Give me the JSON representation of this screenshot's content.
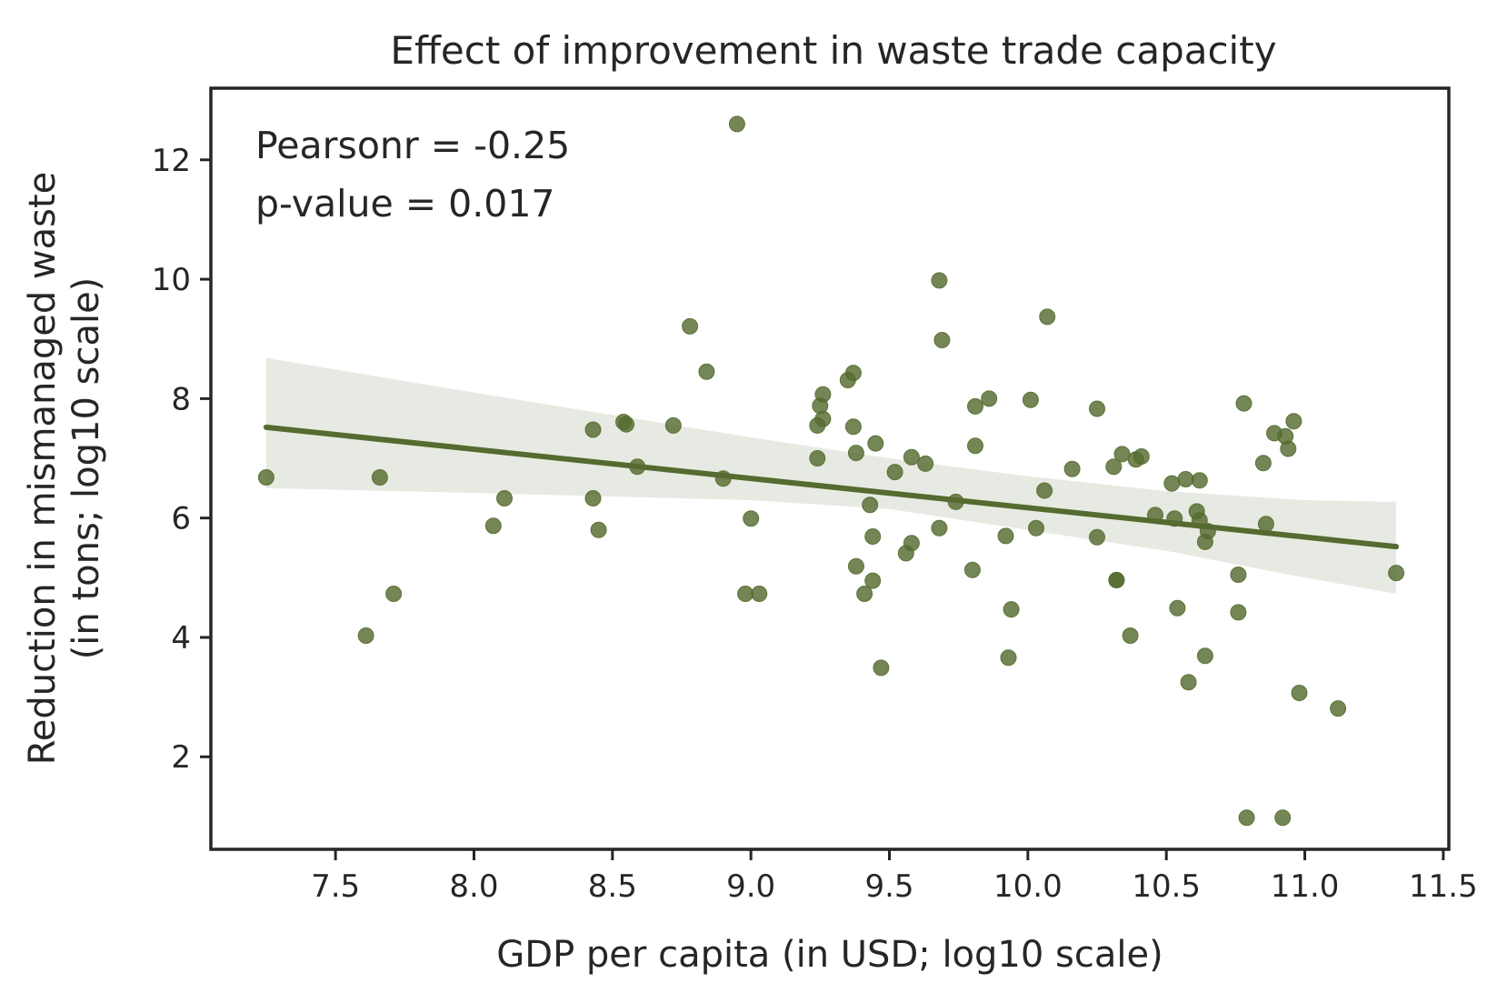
{
  "chart_data": {
    "type": "scatter",
    "title": "Effect of improvement in waste trade capacity",
    "xlabel": "GDP per capita (in USD; log10 scale)",
    "ylabel": [
      "Reduction in mismanaged waste",
      "(in tons; log10 scale)"
    ],
    "xlim": [
      7.05,
      11.52
    ],
    "ylim": [
      0.45,
      13.2
    ],
    "xticks": [
      7.5,
      8.0,
      8.5,
      9.0,
      9.5,
      10.0,
      10.5,
      11.0,
      11.5
    ],
    "xtick_labels": [
      "7.5",
      "8.0",
      "8.5",
      "9.0",
      "9.5",
      "10.0",
      "10.5",
      "11.0",
      "11.5"
    ],
    "yticks": [
      2,
      4,
      6,
      8,
      10,
      12
    ],
    "ytick_labels": [
      "2",
      "4",
      "6",
      "8",
      "10",
      "12"
    ],
    "grid": false,
    "annotations": [
      "Pearsonr = -0.25",
      "p-value = 0.017"
    ],
    "color": "#556b2f",
    "points": [
      [
        7.25,
        6.68
      ],
      [
        7.61,
        4.03
      ],
      [
        7.66,
        6.68
      ],
      [
        7.71,
        4.73
      ],
      [
        8.07,
        5.87
      ],
      [
        8.11,
        6.33
      ],
      [
        8.43,
        7.48
      ],
      [
        8.43,
        6.33
      ],
      [
        8.45,
        5.8
      ],
      [
        8.54,
        7.61
      ],
      [
        8.55,
        7.57
      ],
      [
        8.59,
        6.86
      ],
      [
        8.72,
        7.55
      ],
      [
        8.78,
        9.21
      ],
      [
        8.84,
        8.45
      ],
      [
        8.9,
        6.66
      ],
      [
        8.95,
        12.6
      ],
      [
        8.98,
        4.73
      ],
      [
        9.0,
        5.99
      ],
      [
        9.03,
        4.73
      ],
      [
        9.24,
        7.0
      ],
      [
        9.24,
        7.55
      ],
      [
        9.25,
        7.88
      ],
      [
        9.26,
        7.66
      ],
      [
        9.26,
        8.07
      ],
      [
        9.35,
        8.31
      ],
      [
        9.37,
        8.43
      ],
      [
        9.37,
        7.53
      ],
      [
        9.38,
        7.09
      ],
      [
        9.38,
        5.19
      ],
      [
        9.41,
        4.73
      ],
      [
        9.43,
        6.22
      ],
      [
        9.44,
        4.95
      ],
      [
        9.44,
        5.69
      ],
      [
        9.45,
        7.25
      ],
      [
        9.47,
        3.49
      ],
      [
        9.52,
        6.77
      ],
      [
        9.56,
        5.41
      ],
      [
        9.58,
        5.58
      ],
      [
        9.58,
        7.02
      ],
      [
        9.63,
        6.91
      ],
      [
        9.68,
        5.83
      ],
      [
        9.68,
        9.98
      ],
      [
        9.69,
        8.98
      ],
      [
        9.74,
        6.27
      ],
      [
        9.8,
        5.13
      ],
      [
        9.81,
        7.87
      ],
      [
        9.81,
        7.21
      ],
      [
        9.86,
        8.0
      ],
      [
        9.92,
        5.7
      ],
      [
        9.93,
        3.66
      ],
      [
        9.94,
        4.47
      ],
      [
        10.01,
        7.98
      ],
      [
        10.03,
        5.83
      ],
      [
        10.06,
        6.46
      ],
      [
        10.07,
        9.37
      ],
      [
        10.16,
        6.82
      ],
      [
        10.25,
        7.83
      ],
      [
        10.25,
        5.68
      ],
      [
        10.31,
        6.86
      ],
      [
        10.32,
        4.96
      ],
      [
        10.32,
        4.96
      ],
      [
        10.34,
        7.07
      ],
      [
        10.37,
        4.03
      ],
      [
        10.39,
        6.98
      ],
      [
        10.41,
        7.03
      ],
      [
        10.46,
        6.05
      ],
      [
        10.52,
        6.58
      ],
      [
        10.53,
        5.99
      ],
      [
        10.54,
        4.49
      ],
      [
        10.57,
        6.65
      ],
      [
        10.58,
        3.25
      ],
      [
        10.61,
        6.11
      ],
      [
        10.62,
        5.96
      ],
      [
        10.62,
        6.63
      ],
      [
        10.64,
        3.69
      ],
      [
        10.64,
        5.6
      ],
      [
        10.65,
        5.78
      ],
      [
        10.76,
        5.05
      ],
      [
        10.76,
        4.42
      ],
      [
        10.78,
        7.92
      ],
      [
        10.79,
        0.98
      ],
      [
        10.85,
        6.92
      ],
      [
        10.86,
        5.9
      ],
      [
        10.89,
        7.42
      ],
      [
        10.92,
        0.98
      ],
      [
        10.93,
        7.37
      ],
      [
        10.94,
        7.16
      ],
      [
        10.96,
        7.62
      ],
      [
        10.98,
        3.07
      ],
      [
        11.12,
        2.81
      ],
      [
        11.33,
        5.08
      ]
    ],
    "regression": {
      "x": [
        7.25,
        11.33
      ],
      "y": [
        7.52,
        5.52
      ]
    },
    "confidence_band": {
      "x": [
        7.25,
        8.0,
        9.0,
        9.5,
        10.0,
        10.5,
        11.0,
        11.33
      ],
      "upper": [
        8.68,
        8.1,
        7.35,
        7.0,
        6.7,
        6.45,
        6.3,
        6.27
      ],
      "lower": [
        6.5,
        6.42,
        6.3,
        6.15,
        5.8,
        5.45,
        5.0,
        4.73
      ]
    }
  }
}
